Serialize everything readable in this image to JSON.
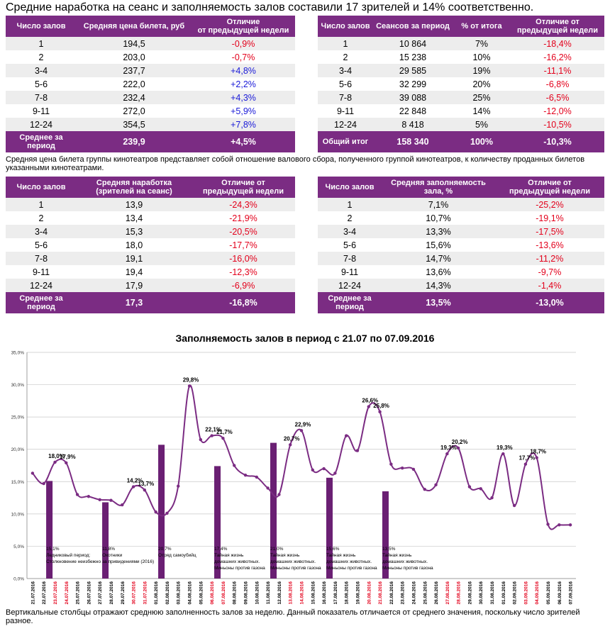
{
  "headline": "Средние наработка на сеанс и заполняемость залов составили 17 зрителей и 14% соответственно.",
  "table_price": {
    "headers": [
      "Число залов",
      "Средняя цена билета, руб",
      "Отличие\nот предыдущей недели"
    ],
    "rows": [
      [
        "1",
        "194,5",
        "-0,9%"
      ],
      [
        "2",
        "203,0",
        "-0,7%"
      ],
      [
        "3-4",
        "237,7",
        "+4,8%"
      ],
      [
        "5-6",
        "222,0",
        "+2,2%"
      ],
      [
        "7-8",
        "232,4",
        "+4,3%"
      ],
      [
        "9-11",
        "272,0",
        "+5,9%"
      ],
      [
        "12-24",
        "354,5",
        "+7,8%"
      ]
    ],
    "footer": [
      "Среднее за\nпериод",
      "239,9",
      "+4,5%"
    ]
  },
  "table_sessions": {
    "headers": [
      "Число залов",
      "Сеансов за период",
      "% от итога",
      "Отличие от\nпредыдущей недели"
    ],
    "rows": [
      [
        "1",
        "10 864",
        "7%",
        "-18,4%"
      ],
      [
        "2",
        "15 238",
        "10%",
        "-16,2%"
      ],
      [
        "3-4",
        "29 585",
        "19%",
        "-11,1%"
      ],
      [
        "5-6",
        "32 299",
        "20%",
        "-6,8%"
      ],
      [
        "7-8",
        "39 088",
        "25%",
        "-6,5%"
      ],
      [
        "9-11",
        "22 848",
        "14%",
        "-12,0%"
      ],
      [
        "12-24",
        "8 418",
        "5%",
        "-10,5%"
      ]
    ],
    "footer": [
      "Общий итог",
      "158 340",
      "100%",
      "-10,3%"
    ]
  },
  "note_price": "Средняя цена билета группы кинотеатров представляет собой отношение валового сбора, полученного группой кинотеатров, к количеству проданных билетов указанными кинотеатрами.",
  "table_attendance": {
    "headers": [
      "Число залов",
      "Средняя наработка\n(зрителей на сеанс)",
      "Отличие от\nпредыдущей недели"
    ],
    "rows": [
      [
        "1",
        "13,9",
        "-24,3%"
      ],
      [
        "2",
        "13,4",
        "-21,9%"
      ],
      [
        "3-4",
        "15,3",
        "-20,5%"
      ],
      [
        "5-6",
        "18,0",
        "-17,7%"
      ],
      [
        "7-8",
        "19,1",
        "-16,0%"
      ],
      [
        "9-11",
        "19,4",
        "-12,3%"
      ],
      [
        "12-24",
        "17,9",
        "-6,9%"
      ]
    ],
    "footer": [
      "Среднее за\nпериод",
      "17,3",
      "-16,8%"
    ]
  },
  "table_fill": {
    "headers": [
      "Число залов",
      "Средняя заполняемость\nзала, %",
      "Отличие от\nпредыдущей недели"
    ],
    "rows": [
      [
        "1",
        "7,1%",
        "-25,2%"
      ],
      [
        "2",
        "10,7%",
        "-19,1%"
      ],
      [
        "3-4",
        "13,3%",
        "-17,5%"
      ],
      [
        "5-6",
        "15,6%",
        "-13,6%"
      ],
      [
        "7-8",
        "14,7%",
        "-11,2%"
      ],
      [
        "9-11",
        "13,6%",
        "-9,7%"
      ],
      [
        "12-24",
        "14,3%",
        "-1,4%"
      ]
    ],
    "footer": [
      "Среднее за\nпериод",
      "13,5%",
      "-13,0%"
    ]
  },
  "chart_data": {
    "type": "line",
    "title": "Заполняемость залов в период с 21.07 по 07.09.2016",
    "ylim": [
      0,
      35
    ],
    "yticks": [
      "0,0%",
      "5,0%",
      "10,0%",
      "15,0%",
      "20,0%",
      "25,0%",
      "30,0%",
      "35,0%"
    ],
    "grid": true,
    "x": [
      "21.07.2016",
      "22.07.2016",
      "23.07.2016",
      "24.07.2016",
      "25.07.2016",
      "26.07.2016",
      "27.07.2016",
      "28.07.2016",
      "29.07.2016",
      "30.07.2016",
      "31.07.2016",
      "01.08.2016",
      "02.08.2016",
      "03.08.2016",
      "04.08.2016",
      "05.08.2016",
      "06.08.2016",
      "07.08.2016",
      "08.08.2016",
      "09.08.2016",
      "10.08.2016",
      "11.08.2016",
      "12.08.2016",
      "13.08.2016",
      "14.08.2016",
      "15.08.2016",
      "16.08.2016",
      "17.08.2016",
      "18.08.2016",
      "19.08.2016",
      "20.08.2016",
      "21.08.2016",
      "22.08.2016",
      "23.08.2016",
      "24.08.2016",
      "25.08.2016",
      "26.08.2016",
      "27.08.2016",
      "28.08.2016",
      "29.08.2016",
      "30.08.2016",
      "31.08.2016",
      "01.09.2016",
      "02.09.2016",
      "03.09.2016",
      "04.09.2016",
      "05.09.2016",
      "06.09.2016",
      "07.09.2016"
    ],
    "red_dates": [
      "23.07.2016",
      "24.07.2016",
      "30.07.2016",
      "31.07.2016",
      "06.08.2016",
      "07.08.2016",
      "13.08.2016",
      "14.08.2016",
      "20.08.2016",
      "21.08.2016",
      "27.08.2016",
      "28.08.2016",
      "03.09.2016",
      "04.09.2016"
    ],
    "series": [
      {
        "color": "#7b2c83",
        "values": [
          16.3,
          14.7,
          18.0,
          17.9,
          13.0,
          12.7,
          12.2,
          12.1,
          11.4,
          14.2,
          13.7,
          10.3,
          10.1,
          14.3,
          29.8,
          21.5,
          22.1,
          21.7,
          17.5,
          16.0,
          15.7,
          14.0,
          13.0,
          20.7,
          22.9,
          16.8,
          17.0,
          16.3,
          22.1,
          19.8,
          26.6,
          25.8,
          17.7,
          17.1,
          16.9,
          13.8,
          14.5,
          19.3,
          20.2,
          14.2,
          13.9,
          12.5,
          19.3,
          11.3,
          17.7,
          18.7,
          8.4,
          8.3,
          8.3
        ]
      }
    ],
    "point_labels": [
      {
        "i": 2,
        "text": "18,0%"
      },
      {
        "i": 3,
        "text": "17,9%"
      },
      {
        "i": 9,
        "text": "14,2%"
      },
      {
        "i": 10,
        "text": "13,7%"
      },
      {
        "i": 14,
        "text": "29,8%"
      },
      {
        "i": 16,
        "text": "22,1%"
      },
      {
        "i": 17,
        "text": "21,7%"
      },
      {
        "i": 23,
        "text": "20,7%"
      },
      {
        "i": 24,
        "text": "22,9%"
      },
      {
        "i": 30,
        "text": "26,6%"
      },
      {
        "i": 31,
        "text": "25,8%"
      },
      {
        "i": 37,
        "text": "19,3%"
      },
      {
        "i": 38,
        "text": "20,2%"
      },
      {
        "i": 42,
        "text": "19,3%"
      },
      {
        "i": 44,
        "text": "17,7%"
      },
      {
        "i": 45,
        "text": "18,7%"
      }
    ],
    "bars": [
      {
        "i": 3,
        "value": 15.1,
        "label": "15,1%",
        "lines": [
          "Ледниковый период:",
          "Столкновение неизбежно"
        ]
      },
      {
        "i": 13,
        "value": 11.8,
        "label": "11,8%",
        "lines": [
          "Охотники",
          "за привидениями (2016)"
        ]
      },
      {
        "i": 23,
        "value": 20.7,
        "label": "20,7%",
        "lines": [
          "Отряд самоубийц"
        ]
      },
      {
        "i": 33,
        "value": 17.4,
        "label": "17,4%",
        "lines": [
          "Тайная жизнь",
          "домашних животных.",
          "Миньоны против газона"
        ]
      },
      {
        "i": 43,
        "value": 21.0,
        "label": "21,0%",
        "lines": [
          "Тайная жизнь",
          "домашних животных.",
          "Миньоны против газона"
        ]
      },
      {
        "i": 53,
        "value": 15.6,
        "label": "15,6%",
        "lines": [
          "Тайная жизнь",
          "домашних животных.",
          "Миньоны против газона"
        ]
      },
      {
        "i": 63,
        "value": 13.5,
        "label": "13,5%",
        "lines": [
          "Тайная жизнь",
          "домашних животных.",
          "Миньоны против газона"
        ]
      }
    ],
    "bar_color": "#6a1f73"
  },
  "note_chart": "Вертикальные столбцы отражают среднюю заполненность залов за неделю. Данный показатель отличается от среднего значения, поскольку число зрителей разное."
}
